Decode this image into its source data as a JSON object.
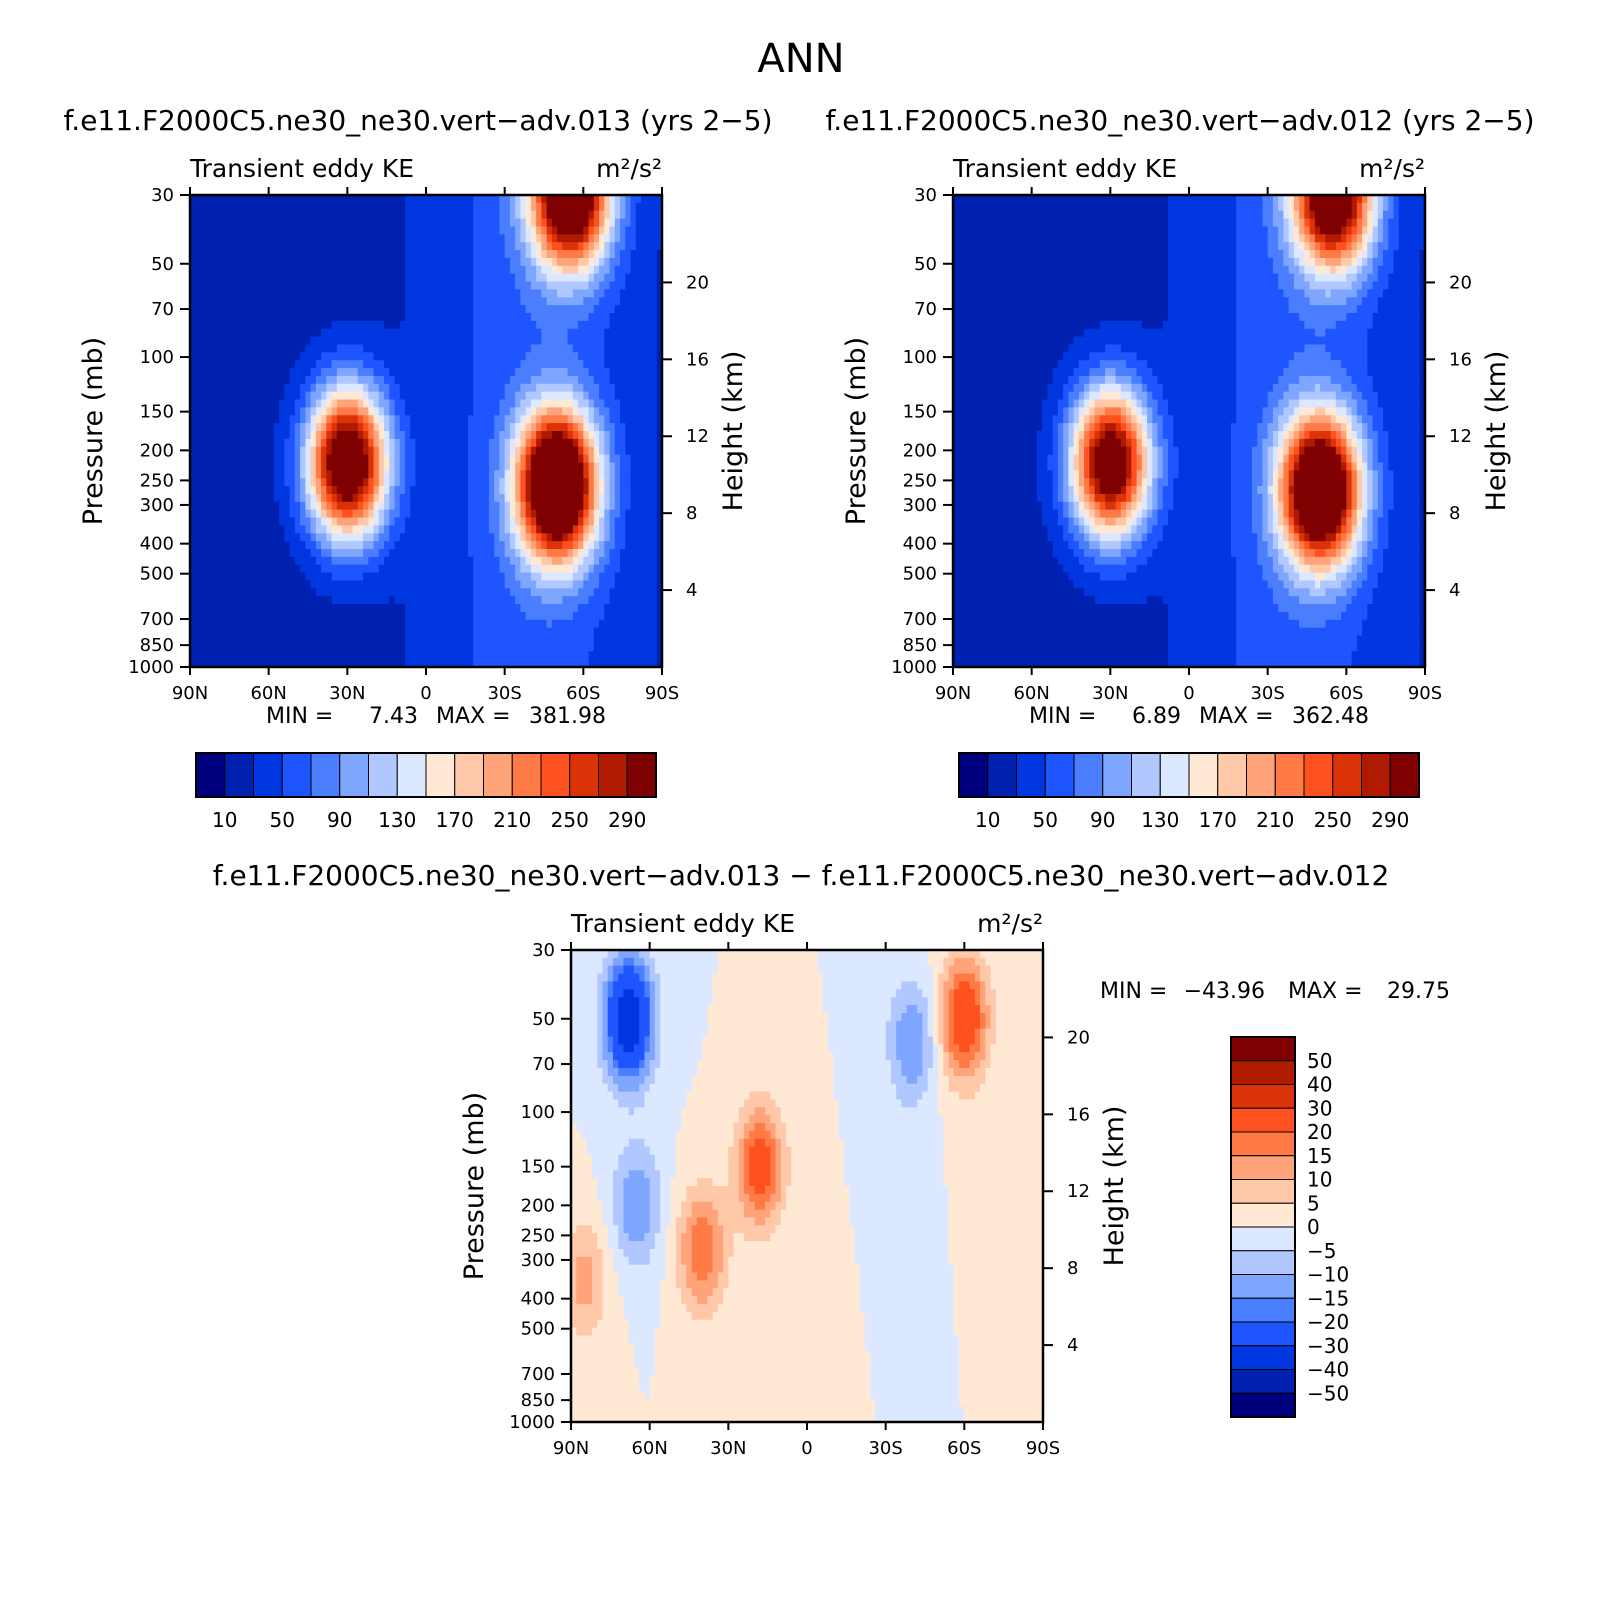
{
  "page": {
    "title": "ANN",
    "diff_title": "f.e11.F2000C5.ne30_ne30.vert−adv.013 − f.e11.F2000C5.ne30_ne30.vert−adv.012"
  },
  "palettes": {
    "full": [
      "#00007f",
      "#0020b0",
      "#0037e0",
      "#1f55ff",
      "#4a7eff",
      "#7fa6ff",
      "#b0c8ff",
      "#dce8ff",
      "#ffe8d4",
      "#ffc8a8",
      "#ffa47a",
      "#ff7a45",
      "#ff5020",
      "#dc3208",
      "#b01a00",
      "#7f0000"
    ],
    "full_labels": [
      "10",
      "50",
      "90",
      "130",
      "170",
      "210",
      "250",
      "290"
    ],
    "diff": [
      "#00007f",
      "#0020b0",
      "#0037e0",
      "#1f55ff",
      "#4a7eff",
      "#7fa6ff",
      "#b0c8ff",
      "#dce8ff",
      "#ffe8d4",
      "#ffc8a8",
      "#ffa47a",
      "#ff7a45",
      "#ff5020",
      "#dc3208",
      "#b01a00",
      "#7f0000"
    ],
    "diff_labels": [
      "50",
      "40",
      "30",
      "20",
      "15",
      "10",
      "5",
      "0",
      "−5",
      "−10",
      "−15",
      "−20",
      "−30",
      "−40",
      "−50"
    ]
  },
  "chart_data": [
    {
      "type": "heatmap",
      "title": "f.e11.F2000C5.ne30_ne30.vert−adv.013 (yrs 2−5)",
      "left_label": "Transient eddy KE",
      "right_label": "m²/s²",
      "ylabel": "Pressure (mb)",
      "ylabel_right": "Height (km)",
      "x_ticks": [
        "90N",
        "60N",
        "30N",
        "0",
        "30S",
        "60S",
        "90S"
      ],
      "y_ticks": [
        "30",
        "50",
        "70",
        "100",
        "150",
        "200",
        "250",
        "300",
        "400",
        "500",
        "700",
        "850",
        "1000"
      ],
      "y_ticks_right": [
        "20",
        "16",
        "12",
        "8",
        "4"
      ],
      "y_log": true,
      "ylim": [
        1000,
        30
      ],
      "min_label": "MIN =",
      "min_value": "7.43",
      "max_label": "MAX =",
      "max_value": "381.98",
      "colorbar_levels": [
        10,
        30,
        50,
        70,
        90,
        110,
        130,
        150,
        170,
        190,
        210,
        230,
        250,
        270,
        290
      ],
      "features": [
        {
          "lat": 30,
          "p": 220,
          "peak": 340
        },
        {
          "lat": -50,
          "p": 260,
          "peak": 380
        },
        {
          "lat": -55,
          "p": 30,
          "peak": 330
        }
      ]
    },
    {
      "type": "heatmap",
      "title": "f.e11.F2000C5.ne30_ne30.vert−adv.012 (yrs 2−5)",
      "left_label": "Transient eddy KE",
      "right_label": "m²/s²",
      "ylabel": "Pressure (mb)",
      "ylabel_right": "Height (km)",
      "x_ticks": [
        "90N",
        "60N",
        "30N",
        "0",
        "30S",
        "60S",
        "90S"
      ],
      "y_ticks": [
        "30",
        "50",
        "70",
        "100",
        "150",
        "200",
        "250",
        "300",
        "400",
        "500",
        "700",
        "850",
        "1000"
      ],
      "y_ticks_right": [
        "20",
        "16",
        "12",
        "8",
        "4"
      ],
      "y_log": true,
      "ylim": [
        1000,
        30
      ],
      "min_label": "MIN =",
      "min_value": "6.89",
      "max_label": "MAX =",
      "max_value": "362.48",
      "colorbar_levels": [
        10,
        30,
        50,
        70,
        90,
        110,
        130,
        150,
        170,
        190,
        210,
        230,
        250,
        270,
        290
      ],
      "features": [
        {
          "lat": 30,
          "p": 220,
          "peak": 320
        },
        {
          "lat": -50,
          "p": 270,
          "peak": 360
        },
        {
          "lat": -55,
          "p": 30,
          "peak": 320
        }
      ]
    },
    {
      "type": "heatmap",
      "title": "",
      "left_label": "Transient eddy KE",
      "right_label": "m²/s²",
      "ylabel": "Pressure (mb)",
      "ylabel_right": "Height (km)",
      "x_ticks": [
        "90N",
        "60N",
        "30N",
        "0",
        "30S",
        "60S",
        "90S"
      ],
      "y_ticks": [
        "30",
        "50",
        "70",
        "100",
        "150",
        "200",
        "250",
        "300",
        "400",
        "500",
        "700",
        "850",
        "1000"
      ],
      "y_ticks_right": [
        "20",
        "16",
        "12",
        "8",
        "4"
      ],
      "y_log": true,
      "ylim": [
        1000,
        30
      ],
      "min_label": "MIN =",
      "min_value": "−43.96",
      "max_label": "MAX =",
      "max_value": "29.75",
      "colorbar_levels": [
        -50,
        -40,
        -30,
        -20,
        -15,
        -10,
        -5,
        0,
        5,
        10,
        15,
        20,
        30,
        40,
        50
      ],
      "features": [
        {
          "lat": 68,
          "p": 50,
          "peak": -40
        },
        {
          "lat": -40,
          "p": 60,
          "peak": -15
        },
        {
          "lat": -60,
          "p": 50,
          "peak": 28
        },
        {
          "lat": 18,
          "p": 150,
          "peak": 24
        },
        {
          "lat": 40,
          "p": 280,
          "peak": 20
        },
        {
          "lat": 85,
          "p": 350,
          "peak": 12
        },
        {
          "lat": 65,
          "p": 200,
          "peak": -15
        }
      ]
    }
  ]
}
